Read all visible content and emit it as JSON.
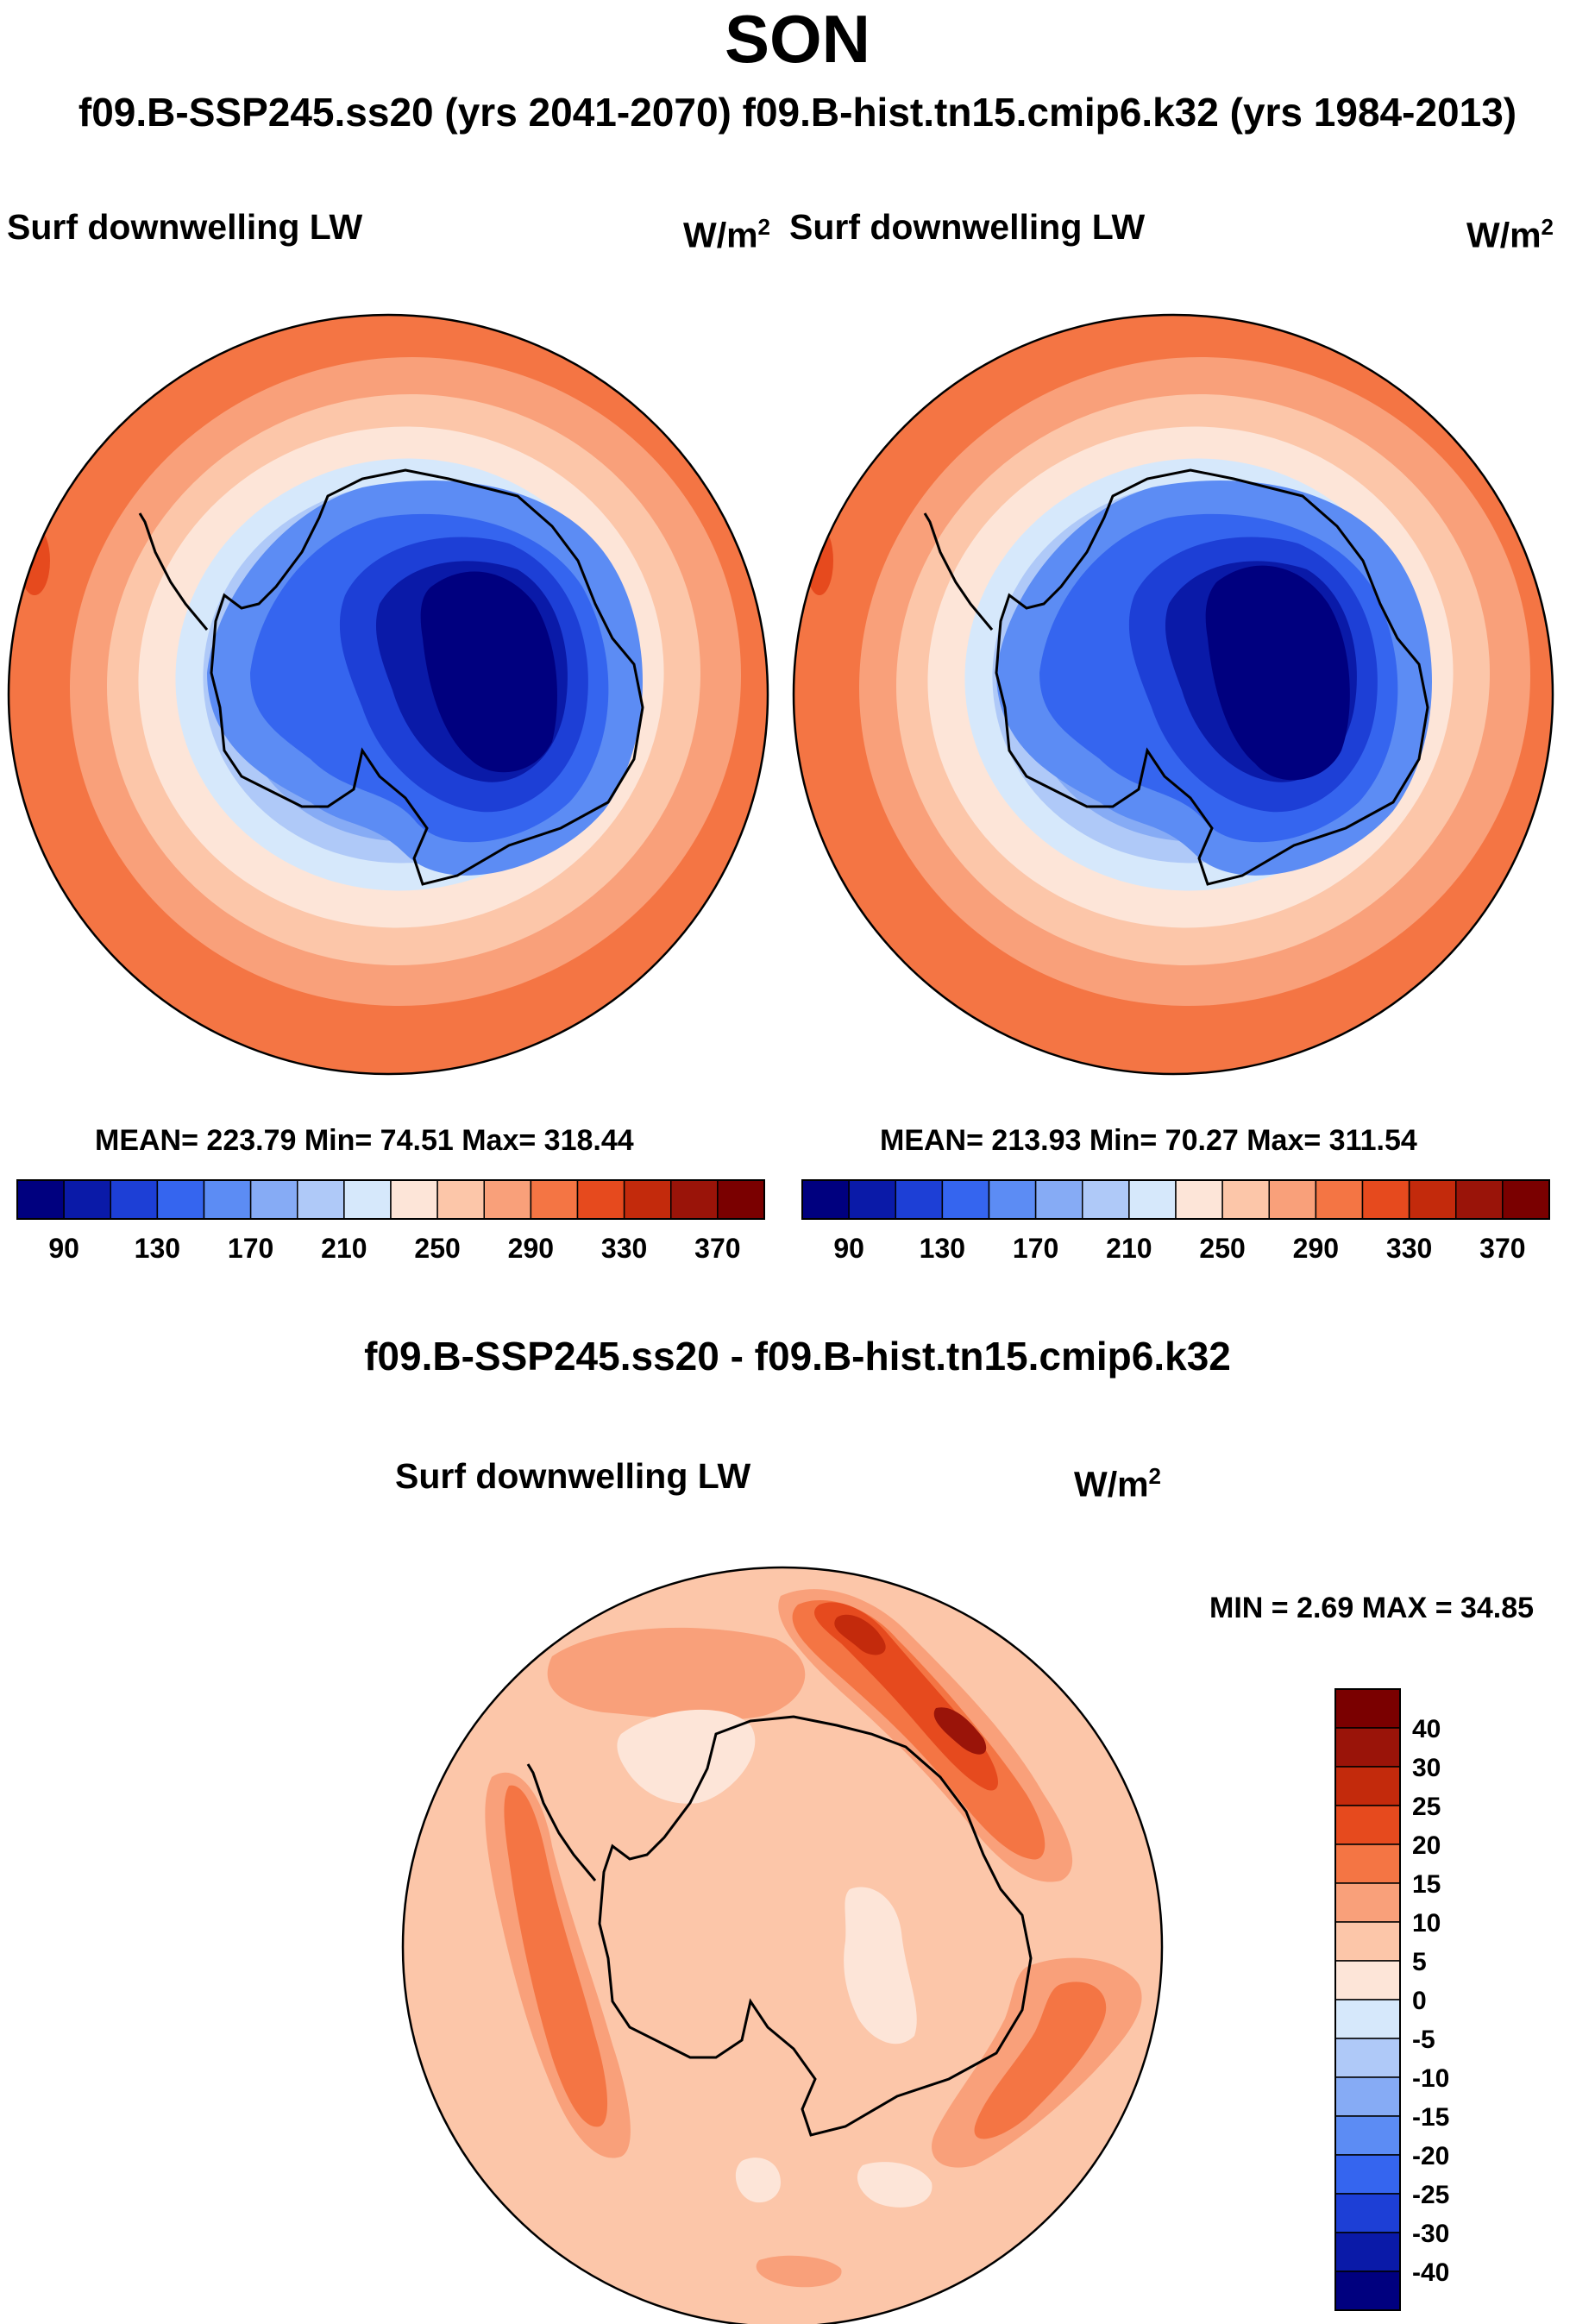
{
  "header": {
    "season": "SON",
    "subtitle": "f09.B-SSP245.ss20 (yrs 2041-2070)  f09.B-hist.tn15.cmip6.k32 (yrs 1984-2013)"
  },
  "panels": [
    {
      "case": "f09.B-SSP245.ss20",
      "years": "2041-2070",
      "title": "Surf downwelling LW",
      "units": "W/m",
      "units_exp": "2",
      "stats": "MEAN= 223.79  Min=  74.51  Max= 318.44"
    },
    {
      "case": "f09.B-hist.tn15.cmip6.k32",
      "years": "1984-2013",
      "title": "Surf downwelling LW",
      "units": "W/m",
      "units_exp": "2",
      "stats": "MEAN= 213.93  Min=  70.27  Max= 311.54"
    }
  ],
  "difference": {
    "heading": "f09.B-SSP245.ss20 - f09.B-hist.tn15.cmip6.k32",
    "title": "Surf downwelling LW",
    "units": "W/m",
    "units_exp": "2",
    "stats": "MIN =   2.69 MAX =  34.85"
  },
  "chart_data": [
    {
      "type": "heatmap",
      "title": "Surf downwelling LW",
      "units": "W/m2",
      "projection": "south polar stereographic",
      "region": "Antarctica and Southern Ocean",
      "mean": 223.79,
      "min": 74.51,
      "max": 318.44,
      "colorbar": {
        "orientation": "horizontal",
        "levels": [
          90,
          110,
          130,
          150,
          170,
          190,
          210,
          230,
          250,
          270,
          290,
          310,
          330,
          350,
          370
        ],
        "tick_labels": [
          "90",
          "130",
          "170",
          "210",
          "250",
          "290",
          "330",
          "370"
        ],
        "colors": [
          "#00007f",
          "#0a1aa8",
          "#1d3fd6",
          "#3565ef",
          "#5c8cf4",
          "#86abf5",
          "#afc9f8",
          "#d6e8fb",
          "#fde5d8",
          "#fcc6a9",
          "#f9a07a",
          "#f47544",
          "#e64a1e",
          "#c32a0c",
          "#9a1409",
          "#7a0000"
        ]
      }
    },
    {
      "type": "heatmap",
      "title": "Surf downwelling LW",
      "units": "W/m2",
      "projection": "south polar stereographic",
      "region": "Antarctica and Southern Ocean",
      "mean": 213.93,
      "min": 70.27,
      "max": 311.54,
      "colorbar": {
        "orientation": "horizontal",
        "levels": [
          90,
          110,
          130,
          150,
          170,
          190,
          210,
          230,
          250,
          270,
          290,
          310,
          330,
          350,
          370
        ],
        "tick_labels": [
          "90",
          "130",
          "170",
          "210",
          "250",
          "290",
          "330",
          "370"
        ],
        "colors": [
          "#00007f",
          "#0a1aa8",
          "#1d3fd6",
          "#3565ef",
          "#5c8cf4",
          "#86abf5",
          "#afc9f8",
          "#d6e8fb",
          "#fde5d8",
          "#fcc6a9",
          "#f9a07a",
          "#f47544",
          "#e64a1e",
          "#c32a0c",
          "#9a1409",
          "#7a0000"
        ]
      }
    },
    {
      "type": "heatmap",
      "title": "Surf downwelling LW",
      "units": "W/m2",
      "projection": "south polar stereographic",
      "region": "Antarctica and Southern Ocean",
      "min": 2.69,
      "max": 34.85,
      "colorbar": {
        "orientation": "vertical",
        "levels": [
          -40,
          -30,
          -25,
          -20,
          -15,
          -10,
          -5,
          0,
          5,
          10,
          15,
          20,
          25,
          30,
          40
        ],
        "tick_labels": [
          "40",
          "30",
          "25",
          "20",
          "15",
          "10",
          "5",
          "0",
          "-5",
          "-10",
          "-15",
          "-20",
          "-25",
          "-30",
          "-40"
        ],
        "colors": [
          "#00007f",
          "#0a1aa8",
          "#1d3fd6",
          "#3565ef",
          "#5c8cf4",
          "#86abf5",
          "#afc9f8",
          "#d6e8fb",
          "#fde5d8",
          "#fcc6a9",
          "#f9a07a",
          "#f47544",
          "#e64a1e",
          "#c32a0c",
          "#9a1409",
          "#7a0000"
        ]
      }
    }
  ]
}
